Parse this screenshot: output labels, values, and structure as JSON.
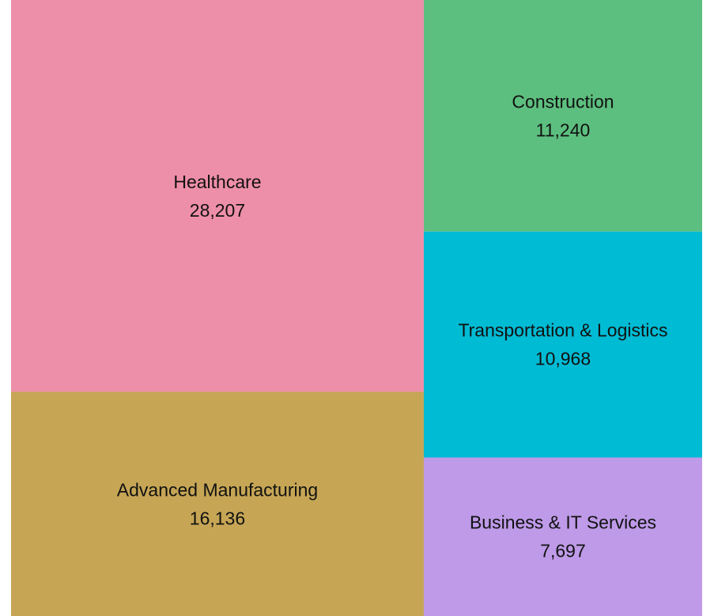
{
  "chart_data": {
    "type": "treemap",
    "title": "",
    "tiles": [
      {
        "name": "Healthcare",
        "value": 28207,
        "label_value": "28,207",
        "color": "#EE8FA9"
      },
      {
        "name": "Advanced Manufacturing",
        "value": 16136,
        "label_value": "16,136",
        "color": "#C6A655"
      },
      {
        "name": "Construction",
        "value": 11240,
        "label_value": "11,240",
        "color": "#5DBF7F"
      },
      {
        "name": "Transportation & Logistics",
        "value": 10968,
        "label_value": "10,968",
        "color": "#00BBD4"
      },
      {
        "name": "Business & IT Services",
        "value": 7697,
        "label_value": "7,697",
        "color": "#BE9AE8"
      }
    ]
  }
}
